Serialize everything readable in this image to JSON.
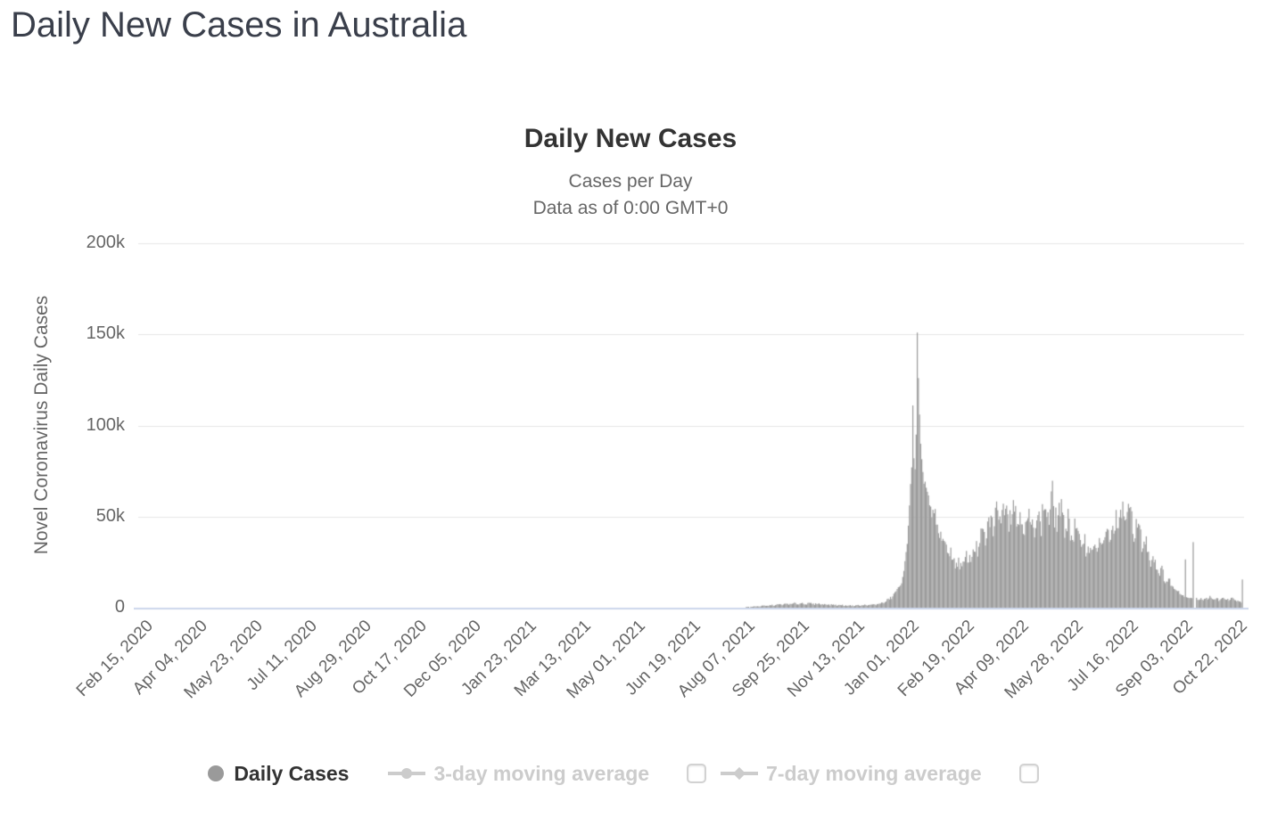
{
  "page": {
    "title": "Daily New Cases in Australia"
  },
  "chart_data": {
    "type": "bar",
    "title": "Daily New Cases",
    "subtitle_line1": "Cases per Day",
    "subtitle_line2": "Data as of 0:00 GMT+0",
    "ylabel": "Novel Coronavirus Daily Cases",
    "ylim": [
      0,
      200000
    ],
    "grid": true,
    "grid_color": "#e6e6e6",
    "axis_line_color": "#ccd6eb",
    "y_ticks": [
      {
        "label": "200k",
        "value": 200000
      },
      {
        "label": "150k",
        "value": 150000
      },
      {
        "label": "100k",
        "value": 100000
      },
      {
        "label": "50k",
        "value": 50000
      },
      {
        "label": "0",
        "value": 0
      }
    ],
    "x_tick_interval_days": 49,
    "x_tick_labels": [
      "Feb 15, 2020",
      "Apr 04, 2020",
      "May 23, 2020",
      "Jul 11, 2020",
      "Aug 29, 2020",
      "Oct 17, 2020",
      "Dec 05, 2020",
      "Jan 23, 2021",
      "Mar 13, 2021",
      "May 01, 2021",
      "Jun 19, 2021",
      "Aug 07, 2021",
      "Sep 25, 2021",
      "Nov 13, 2021",
      "Jan 01, 2022",
      "Feb 19, 2022",
      "Apr 09, 2022",
      "May 28, 2022",
      "Jul 16, 2022",
      "Sep 03, 2022",
      "Oct 22, 2022"
    ],
    "series": [
      {
        "name": "Daily Cases",
        "type": "bar",
        "color": "#9a9a9a",
        "visible": true,
        "start_date": "Feb 15, 2020",
        "total_days": 990,
        "control_points_format": [
          "day_index",
          "cases",
          "jaggedness"
        ],
        "control_points": [
          [
            0,
            0,
            0
          ],
          [
            40,
            250,
            0.4
          ],
          [
            60,
            100,
            0.4
          ],
          [
            130,
            120,
            0.4
          ],
          [
            168,
            300,
            0.35
          ],
          [
            185,
            250,
            0.35
          ],
          [
            215,
            50,
            0.4
          ],
          [
            300,
            20,
            0.5
          ],
          [
            460,
            15,
            0.5
          ],
          [
            515,
            80,
            0.4
          ],
          [
            545,
            400,
            0.3
          ],
          [
            563,
            1100,
            0.25
          ],
          [
            578,
            1900,
            0.25
          ],
          [
            593,
            2300,
            0.25
          ],
          [
            608,
            2100,
            0.25
          ],
          [
            623,
            1500,
            0.3
          ],
          [
            637,
            1150,
            0.3
          ],
          [
            648,
            1300,
            0.3
          ],
          [
            658,
            1600,
            0.28
          ],
          [
            666,
            2600,
            0.22
          ],
          [
            671,
            4200,
            0.2
          ],
          [
            675,
            6500,
            0.18
          ],
          [
            679,
            9500,
            0.15
          ],
          [
            682,
            12500,
            0.12
          ],
          [
            684,
            17000,
            0.1
          ],
          [
            686,
            24000,
            0.08
          ],
          [
            688,
            35000,
            0.06
          ],
          [
            689,
            45000,
            0.05
          ],
          [
            690,
            58000,
            0.04
          ],
          [
            691,
            68000,
            0.03
          ],
          [
            692,
            77000,
            0
          ],
          [
            693,
            111000,
            0
          ],
          [
            694,
            82000,
            0
          ],
          [
            695,
            76000,
            0
          ],
          [
            696,
            95000,
            0
          ],
          [
            697,
            151000,
            0
          ],
          [
            698,
            126000,
            0
          ],
          [
            699,
            106000,
            0
          ],
          [
            700,
            90000,
            0
          ],
          [
            701,
            80000,
            0.03
          ],
          [
            703,
            72000,
            0.05
          ],
          [
            705,
            65000,
            0.07
          ],
          [
            708,
            56000,
            0.1
          ],
          [
            712,
            49000,
            0.12
          ],
          [
            717,
            41000,
            0.13
          ],
          [
            723,
            33000,
            0.15
          ],
          [
            729,
            27000,
            0.16
          ],
          [
            735,
            22500,
            0.17
          ],
          [
            741,
            26000,
            0.17
          ],
          [
            748,
            31000,
            0.17
          ],
          [
            755,
            37500,
            0.18
          ],
          [
            762,
            45000,
            0.18
          ],
          [
            769,
            52000,
            0.19
          ],
          [
            776,
            56000,
            0.19
          ],
          [
            783,
            54000,
            0.2
          ],
          [
            790,
            48500,
            0.2
          ],
          [
            797,
            44500,
            0.2
          ],
          [
            804,
            48000,
            0.2
          ],
          [
            811,
            52000,
            0.2
          ],
          [
            818,
            55000,
            0.21
          ],
          [
            825,
            50000,
            0.2
          ],
          [
            832,
            45500,
            0.2
          ],
          [
            839,
            40000,
            0.2
          ],
          [
            846,
            35500,
            0.2
          ],
          [
            853,
            32000,
            0.2
          ],
          [
            860,
            34000,
            0.2
          ],
          [
            867,
            38000,
            0.2
          ],
          [
            874,
            44000,
            0.2
          ],
          [
            881,
            50000,
            0.2
          ],
          [
            885,
            52000,
            0.18
          ],
          [
            892,
            45500,
            0.18
          ],
          [
            899,
            36500,
            0.18
          ],
          [
            906,
            28500,
            0.18
          ],
          [
            913,
            21500,
            0.18
          ],
          [
            920,
            15500,
            0.18
          ],
          [
            927,
            11000,
            0.15
          ],
          [
            933,
            7800,
            0.12
          ],
          [
            936,
            6200,
            0.08
          ],
          [
            937,
            26500,
            0
          ],
          [
            938,
            5800,
            0.05
          ],
          [
            943,
            5200,
            0.05
          ],
          [
            944,
            36000,
            0
          ],
          [
            945,
            150,
            0
          ],
          [
            946,
            150,
            0
          ],
          [
            947,
            5200,
            0.15
          ],
          [
            951,
            4600,
            0.25
          ],
          [
            958,
            5200,
            0.3
          ],
          [
            965,
            4400,
            0.28
          ],
          [
            972,
            4800,
            0.28
          ],
          [
            979,
            4300,
            0.25
          ],
          [
            984,
            3800,
            0.15
          ],
          [
            986,
            3200,
            0.1
          ],
          [
            987,
            2800,
            0
          ],
          [
            988,
            15500,
            0
          ]
        ]
      },
      {
        "name": "3-day moving average",
        "type": "line",
        "color": "#cccccc",
        "visible": false
      },
      {
        "name": "7-day moving average",
        "type": "line",
        "color": "#cccccc",
        "visible": false
      }
    ],
    "legend": {
      "position": "bottom",
      "disabled_color": "#cccccc",
      "items": [
        {
          "label": "Daily Cases",
          "marker": "circle",
          "enabled": true,
          "has_checkbox": false
        },
        {
          "label": "3-day moving average",
          "marker": "line-circle",
          "enabled": false,
          "has_checkbox": true,
          "checked": false
        },
        {
          "label": "7-day moving average",
          "marker": "line-diamond",
          "enabled": false,
          "has_checkbox": true,
          "checked": false
        }
      ]
    }
  }
}
